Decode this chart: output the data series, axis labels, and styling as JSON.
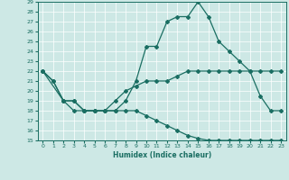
{
  "xlabel": "Humidex (Indice chaleur)",
  "ylabel": "",
  "xlim": [
    -0.5,
    23.5
  ],
  "ylim": [
    15,
    29
  ],
  "yticks": [
    15,
    16,
    17,
    18,
    19,
    20,
    21,
    22,
    23,
    24,
    25,
    26,
    27,
    28,
    29
  ],
  "xticks": [
    0,
    1,
    2,
    3,
    4,
    5,
    6,
    7,
    8,
    9,
    10,
    11,
    12,
    13,
    14,
    15,
    16,
    17,
    18,
    19,
    20,
    21,
    22,
    23
  ],
  "bg_color": "#cde8e5",
  "line_color": "#1a6e62",
  "grid_color": "#ffffff",
  "line1_x": [
    0,
    1,
    2,
    3,
    4,
    5,
    6,
    7,
    8,
    9,
    10,
    11,
    12,
    13,
    14,
    15,
    16,
    17,
    18,
    19,
    20,
    21,
    22,
    23
  ],
  "line1_y": [
    22,
    21,
    19,
    19,
    18,
    18,
    18,
    18,
    19,
    21,
    24.5,
    24.5,
    27,
    27.5,
    27.5,
    29,
    27.5,
    25,
    24,
    23,
    22,
    19.5,
    18,
    18
  ],
  "line2_x": [
    0,
    1,
    2,
    3,
    4,
    5,
    6,
    7,
    8,
    9,
    10,
    11,
    12,
    13,
    14,
    15,
    16,
    17,
    18,
    19,
    20,
    21,
    22,
    23
  ],
  "line2_y": [
    22,
    21,
    19,
    19,
    18,
    18,
    18,
    19,
    20,
    20.5,
    21,
    21,
    21,
    21.5,
    22,
    22,
    22,
    22,
    22,
    22,
    22,
    22,
    22,
    22
  ],
  "line3_x": [
    0,
    2,
    3,
    4,
    5,
    6,
    7,
    8,
    9,
    10,
    11,
    12,
    13,
    14,
    15,
    16,
    17,
    18,
    19,
    20,
    21,
    22,
    23
  ],
  "line3_y": [
    22,
    19,
    18,
    18,
    18,
    18,
    18,
    18,
    18,
    17.5,
    17,
    16.5,
    16,
    15.5,
    15.2,
    15,
    15,
    15,
    15,
    15,
    15,
    15,
    15
  ]
}
